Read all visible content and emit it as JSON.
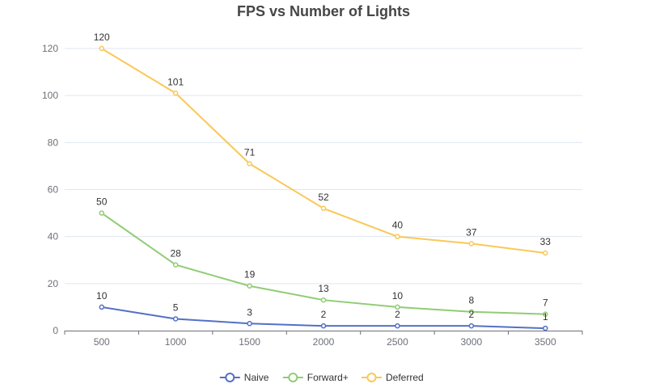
{
  "chart_data": {
    "type": "line",
    "title": "FPS vs Number of Lights",
    "xlabel": "",
    "ylabel": "",
    "categories": [
      "500",
      "1000",
      "1500",
      "2000",
      "2500",
      "3000",
      "3500"
    ],
    "ylim": [
      0,
      120
    ],
    "yticks": [
      0,
      20,
      40,
      60,
      80,
      100,
      120
    ],
    "grid": "horizontal",
    "legend_position": "bottom-center",
    "series": [
      {
        "name": "Naive",
        "color": "#5470c6",
        "values": [
          10,
          5,
          3,
          2,
          2,
          2,
          1
        ]
      },
      {
        "name": "Forward+",
        "color": "#91cc75",
        "values": [
          50,
          28,
          19,
          13,
          10,
          8,
          7
        ]
      },
      {
        "name": "Deferred",
        "color": "#fac858",
        "values": [
          120,
          101,
          71,
          52,
          40,
          37,
          33
        ]
      }
    ]
  }
}
